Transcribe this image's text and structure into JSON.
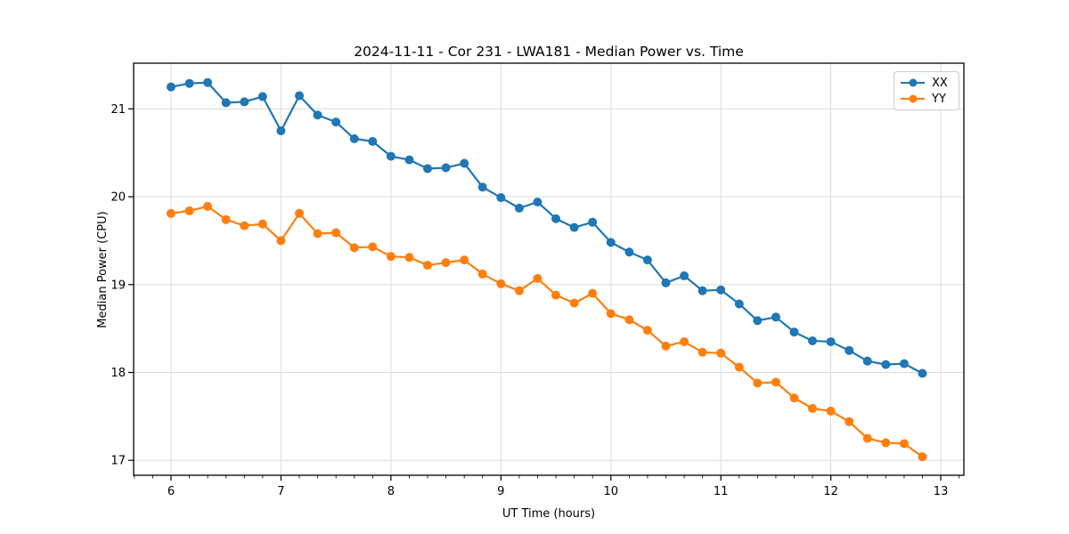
{
  "window": {
    "background": "#ffffff"
  },
  "chart_data": {
    "type": "line",
    "title": "2024-11-11 - Cor 231 - LWA181 - Median Power vs. Time",
    "xlabel": "UT Time (hours)",
    "ylabel": "Median Power (CPU)",
    "legend_position": "upper right",
    "grid": true,
    "grid_color": "#dcdcdc",
    "xlim": [
      5.66,
      13.21
    ],
    "ylim": [
      16.83,
      21.52
    ],
    "xticks": [
      6,
      7,
      8,
      9,
      10,
      11,
      12,
      13
    ],
    "yticks": [
      17,
      18,
      19,
      20,
      21
    ],
    "x_minor_step": 0.16667,
    "x": [
      6.0,
      6.167,
      6.333,
      6.5,
      6.667,
      6.833,
      7.0,
      7.167,
      7.333,
      7.5,
      7.667,
      7.833,
      8.0,
      8.167,
      8.333,
      8.5,
      8.667,
      8.833,
      9.0,
      9.167,
      9.333,
      9.5,
      9.667,
      9.833,
      10.0,
      10.167,
      10.333,
      10.5,
      10.667,
      10.833,
      11.0,
      11.167,
      11.333,
      11.5,
      11.667,
      11.833,
      12.0,
      12.167,
      12.333,
      12.5,
      12.667,
      12.833
    ],
    "series": [
      {
        "name": "XX",
        "color": "#1f77b4",
        "values": [
          21.25,
          21.29,
          21.3,
          21.07,
          21.08,
          21.14,
          20.75,
          21.15,
          20.93,
          20.85,
          20.66,
          20.63,
          20.46,
          20.42,
          20.32,
          20.33,
          20.38,
          20.11,
          19.99,
          19.87,
          19.94,
          19.75,
          19.65,
          19.71,
          19.48,
          19.37,
          19.28,
          19.02,
          19.1,
          18.93,
          18.94,
          18.78,
          18.59,
          18.63,
          18.46,
          18.36,
          18.35,
          18.25,
          18.13,
          18.09,
          18.1,
          17.99
        ]
      },
      {
        "name": "YY",
        "color": "#ff7f0e",
        "values": [
          19.81,
          19.84,
          19.89,
          19.74,
          19.67,
          19.69,
          19.5,
          19.81,
          19.58,
          19.59,
          19.42,
          19.43,
          19.32,
          19.31,
          19.22,
          19.25,
          19.28,
          19.12,
          19.01,
          18.93,
          19.07,
          18.88,
          18.79,
          18.9,
          18.67,
          18.6,
          18.48,
          18.3,
          18.35,
          18.23,
          18.22,
          18.06,
          17.88,
          17.89,
          17.71,
          17.59,
          17.56,
          17.44,
          17.25,
          17.2,
          17.19,
          17.04
        ]
      }
    ]
  }
}
